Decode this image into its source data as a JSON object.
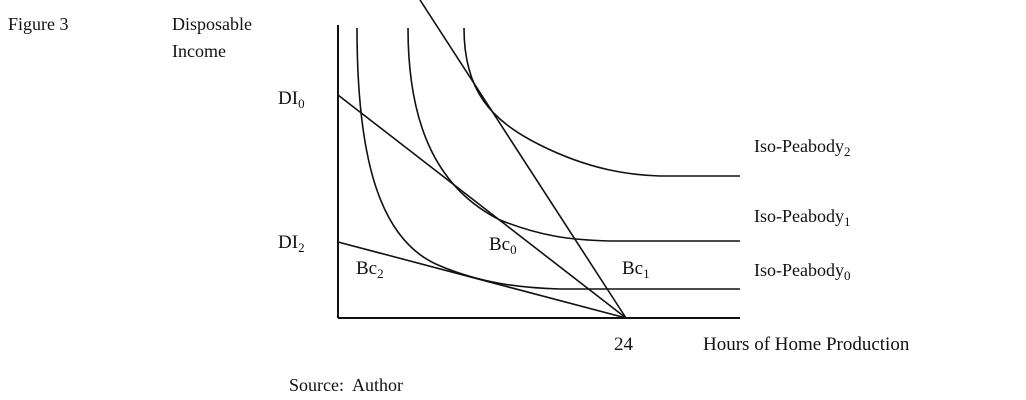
{
  "figure_label": "Figure 3",
  "y_axis_label_line1": "Disposable",
  "y_axis_label_line2": "Income",
  "x_axis_label": "Hours of Home Production",
  "x_tick": "24",
  "y_tick_upper": {
    "base": "DI",
    "sub": "0"
  },
  "y_tick_lower": {
    "base": "DI",
    "sub": "2"
  },
  "budget_labels": [
    {
      "base": "Bc",
      "sub": "2"
    },
    {
      "base": "Bc",
      "sub": "0"
    },
    {
      "base": "Bc",
      "sub": "1"
    }
  ],
  "curve_labels": [
    {
      "base": "Iso-Peabody",
      "sub": "2"
    },
    {
      "base": "Iso-Peabody",
      "sub": "1"
    },
    {
      "base": "Iso-Peabody",
      "sub": "0"
    }
  ],
  "source": "Source:  Author"
}
